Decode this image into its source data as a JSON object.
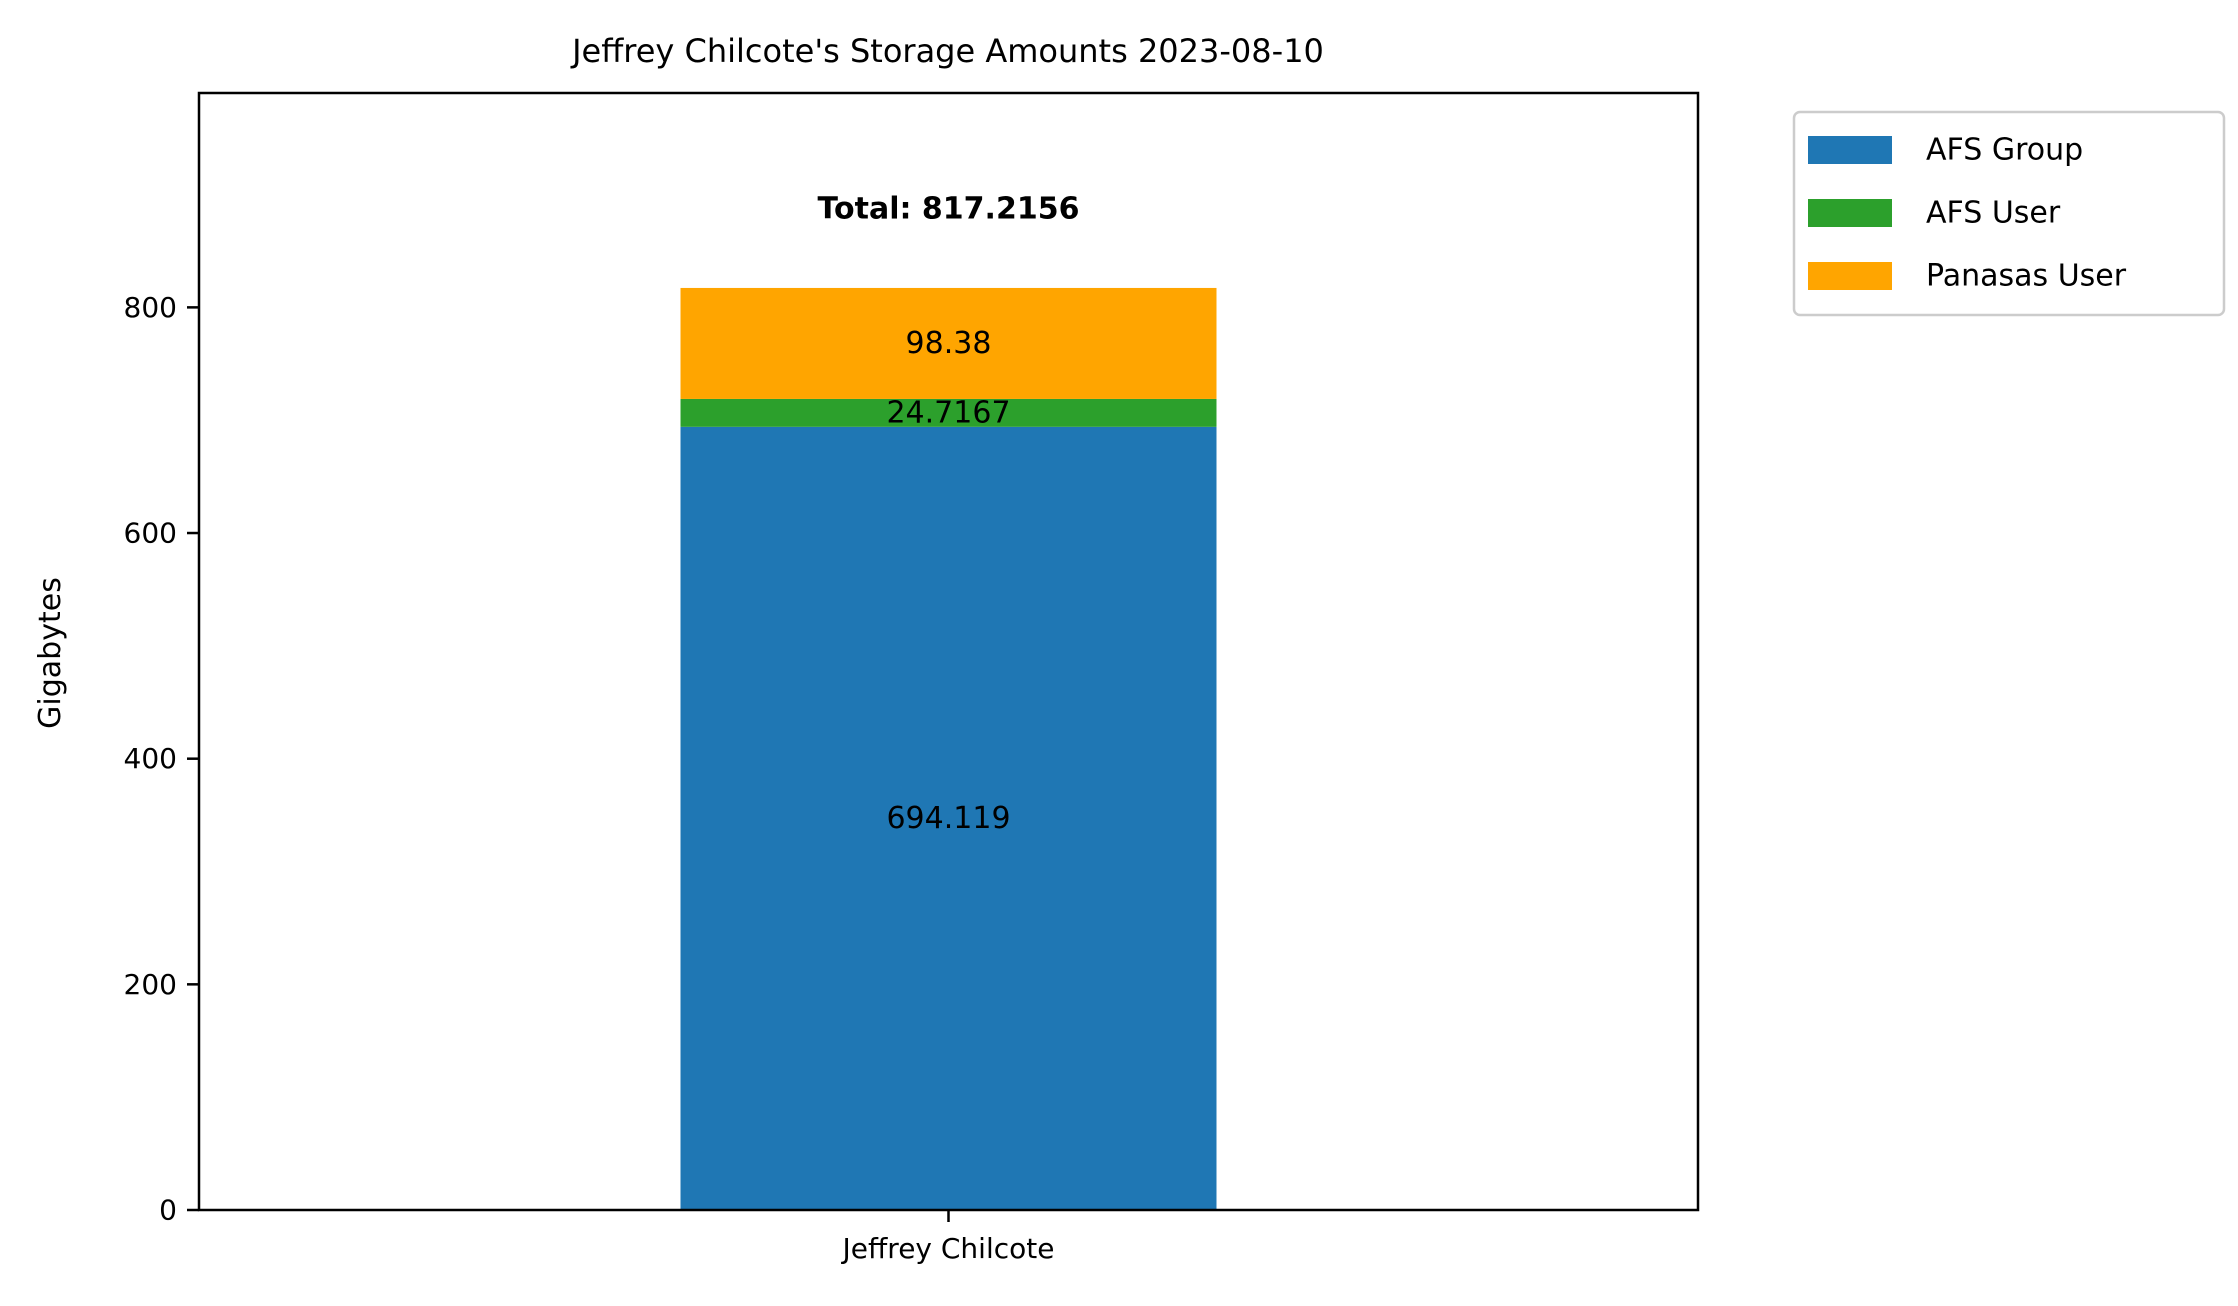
{
  "chart_data": {
    "type": "bar",
    "stacked": true,
    "title": "Jeffrey Chilcote's Storage Amounts 2023-08-10",
    "xlabel": "",
    "ylabel": "Gigabytes",
    "categories": [
      "Jeffrey Chilcote"
    ],
    "ylim": [
      0,
      990
    ],
    "yticks": [
      0,
      200,
      400,
      600,
      800
    ],
    "ytick_labels": [
      "0",
      "200",
      "400",
      "600",
      "800"
    ],
    "series": [
      {
        "name": "AFS Group",
        "values": [
          694.119
        ],
        "value_labels": [
          "694.119"
        ],
        "color": "#1f77b4"
      },
      {
        "name": "AFS User",
        "values": [
          24.7167
        ],
        "value_labels": [
          "24.7167"
        ],
        "color": "#2ca02c"
      },
      {
        "name": "Panasas User",
        "values": [
          98.38
        ],
        "value_labels": [
          "98.38"
        ],
        "color": "#ffa500"
      }
    ],
    "total_labels": [
      "Total: 817.2156"
    ],
    "legend_position": "outside-top-right",
    "grid": false
  }
}
